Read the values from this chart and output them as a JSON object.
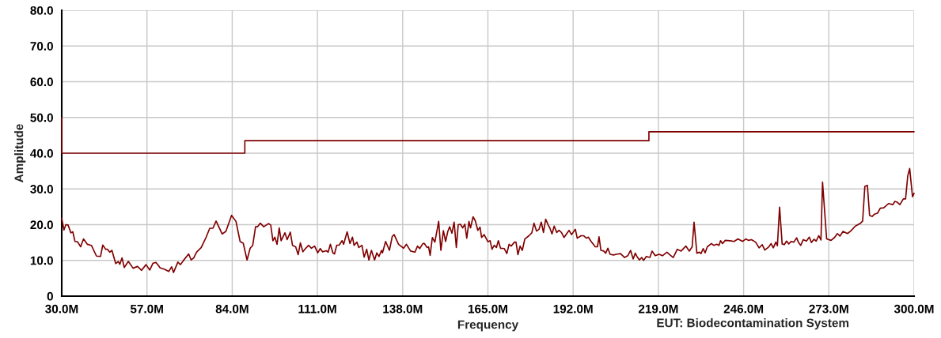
{
  "chart_data": {
    "type": "line",
    "xlabel": "Frequency",
    "ylabel": "Amplitude",
    "annotations": [
      "EUT: Biodecontamination System"
    ],
    "xlim": [
      30,
      300
    ],
    "ylim": [
      0,
      80
    ],
    "xticks": [
      {
        "value": 30,
        "label": "30.0M"
      },
      {
        "value": 57,
        "label": "57.0M"
      },
      {
        "value": 84,
        "label": "84.0M"
      },
      {
        "value": 111,
        "label": "111.0M"
      },
      {
        "value": 138,
        "label": "138.0M"
      },
      {
        "value": 165,
        "label": "165.0M"
      },
      {
        "value": 192,
        "label": "192.0M"
      },
      {
        "value": 219,
        "label": "219.0M"
      },
      {
        "value": 246,
        "label": "246.0M"
      },
      {
        "value": 273,
        "label": "273.0M"
      },
      {
        "value": 300,
        "label": "300.0M"
      }
    ],
    "yticks": [
      {
        "value": 0,
        "label": "0"
      },
      {
        "value": 10,
        "label": "10.0"
      },
      {
        "value": 20,
        "label": "20.0"
      },
      {
        "value": 30,
        "label": "30.0"
      },
      {
        "value": 40,
        "label": "40.0"
      },
      {
        "value": 50,
        "label": "50.0"
      },
      {
        "value": 60,
        "label": "60.0"
      },
      {
        "value": 70,
        "label": "70.0"
      },
      {
        "value": 80,
        "label": "80.0"
      }
    ],
    "grid": true,
    "legend": false,
    "series": [
      {
        "color": "#800000",
        "x": [
          30,
          30,
          88,
          88,
          216,
          216,
          300
        ],
        "values": [
          50,
          40,
          40,
          43.5,
          43.5,
          46,
          46
        ]
      },
      {
        "color": "#800000",
        "x": [
          30,
          30.7,
          31.3,
          32,
          32.9,
          33.5,
          34.2,
          35,
          36,
          36.9,
          38.1,
          39.4,
          41,
          42.3,
          43,
          43.9,
          44.5,
          45.2,
          45.9,
          47.1,
          47.9,
          48.4,
          49.1,
          49.8,
          51.1,
          52.6,
          54,
          55.3,
          56.7,
          57.9,
          58.9,
          59.9,
          61.2,
          62.6,
          63.9,
          64.8,
          65.4,
          66.8,
          67.6,
          68.5,
          70.2,
          71,
          71.8,
          72.7,
          74.2,
          75.7,
          76.9,
          77.9,
          78.9,
          80.8,
          82,
          83.8,
          85.2,
          86.5,
          87.5,
          88.7,
          89.7,
          90.5,
          91.4,
          92,
          92.9,
          94,
          95.5,
          96.2,
          96.9,
          97.5,
          98.2,
          98.9,
          99.5,
          100.7,
          101.4,
          102.4,
          103.1,
          104.1,
          104.9,
          105.6,
          106.4,
          107.2,
          108.2,
          109.1,
          110.1,
          111.1,
          111.9,
          112.6,
          113.8,
          114.4,
          115.1,
          115.9,
          116.4,
          117.1,
          117.9,
          118.8,
          119.3,
          120.4,
          121.3,
          122.1,
          122.6,
          123.5,
          124.1,
          125.1,
          125.8,
          126.6,
          127.3,
          128.1,
          129.1,
          129.8,
          130.5,
          131.3,
          131.6,
          132.6,
          133.8,
          134.7,
          135.3,
          136.7,
          138.3,
          139.2,
          140.5,
          141.9,
          142.7,
          143.4,
          144.4,
          144.9,
          145.7,
          146.2,
          146.7,
          147.4,
          148.2,
          149.4,
          150.1,
          150.9,
          151.6,
          152.3,
          152.9,
          153.6,
          154.3,
          155,
          155.6,
          156.3,
          157,
          157.7,
          158.3,
          159,
          159.5,
          160.3,
          161,
          161.8,
          162.5,
          163,
          163.8,
          165,
          165.7,
          166.3,
          167,
          167.7,
          168.3,
          169,
          170.2,
          171,
          171.7,
          172.4,
          173.4,
          173.9,
          174.5,
          175.2,
          175.9,
          176.7,
          178,
          178.9,
          179.6,
          180.4,
          181.2,
          181.9,
          182.6,
          183.3,
          184.1,
          184.6,
          185.3,
          186,
          186.8,
          187.5,
          188.3,
          189.1,
          190.7,
          191.5,
          192.7,
          193.3,
          194.5,
          195.3,
          196.2,
          196.8,
          197.7,
          199,
          199.7,
          200.2,
          200.8,
          201.7,
          202.3,
          203,
          203.7,
          204.8,
          205.7,
          207,
          208.3,
          209.3,
          210.2,
          211,
          211.7,
          212.2,
          213,
          213.7,
          214.3,
          215.2,
          216.3,
          217,
          218,
          219.2,
          220.3,
          221.7,
          222.7,
          223.7,
          225,
          226.2,
          227.7,
          228.8,
          229.7,
          230.3,
          231.2,
          232,
          232.5,
          233.2,
          233.8,
          234.5,
          235.8,
          236.5,
          237.5,
          238.2,
          238.7,
          239.3,
          240.2,
          241.7,
          243,
          244.2,
          245.7,
          246.7,
          247.5,
          248.5,
          249.8,
          250.9,
          251.9,
          252.7,
          253.9,
          254.7,
          255.4,
          256.2,
          256.7,
          257.4,
          258.2,
          258.9,
          259.6,
          260.3,
          261.1,
          261.9,
          262.8,
          263.4,
          264.1,
          264.9,
          265.9,
          266.8,
          267.5,
          268.3,
          269,
          269.8,
          270.5,
          271,
          272.3,
          273.7,
          274.8,
          275.7,
          276.5,
          277.5,
          278.9,
          279.9,
          281.4,
          282.9,
          283.7,
          284.4,
          285.2,
          285.9,
          286.7,
          287.4,
          288.4,
          289.3,
          290.4,
          291.9,
          293.3,
          293.9,
          294.6,
          295.5,
          296.6,
          297.3,
          298,
          298.6,
          299.5,
          300
        ],
        "values": [
          21.8,
          18.5,
          20,
          19.9,
          17.7,
          18,
          15.3,
          15.2,
          13.8,
          16,
          14.5,
          14.2,
          11.2,
          11.1,
          14.3,
          13.1,
          13.1,
          12.3,
          12.8,
          9.1,
          9.7,
          8.9,
          10.7,
          8,
          9.7,
          7.8,
          8.3,
          7.2,
          8.8,
          7.3,
          9.2,
          9.4,
          7.9,
          7.5,
          6.9,
          8.2,
          6.6,
          9.5,
          8.8,
          9.9,
          11.8,
          10.1,
          10.7,
          12.3,
          13.6,
          16.4,
          19,
          19,
          21,
          17.4,
          18.1,
          22.6,
          20.9,
          15.3,
          14.8,
          10.1,
          13.4,
          14.2,
          19.4,
          19.4,
          20.4,
          19.4,
          20.3,
          19.9,
          15.5,
          16.5,
          14.5,
          19.1,
          15.5,
          17.7,
          15.8,
          17.9,
          14.2,
          13.8,
          11.6,
          14.9,
          12.4,
          13.3,
          14.2,
          13.4,
          14,
          12.1,
          13.3,
          12.4,
          12.7,
          12.3,
          14.5,
          12.1,
          11.8,
          14.2,
          14.3,
          15.5,
          14.5,
          18,
          14.7,
          16.5,
          14.2,
          15.1,
          13.6,
          14.2,
          10.9,
          13.1,
          10.1,
          12.8,
          10.1,
          12.1,
          11.1,
          12.8,
          12.1,
          15.3,
          12.8,
          16.7,
          17.2,
          14.5,
          13.4,
          14.5,
          12.6,
          12.3,
          14,
          13.3,
          14.7,
          14.7,
          13.6,
          13.8,
          11.4,
          16.4,
          15.1,
          20.9,
          12.8,
          18.3,
          15.3,
          18.1,
          19.4,
          17.6,
          20.7,
          13.6,
          20,
          20.1,
          19.1,
          20.1,
          16.2,
          20.9,
          19.1,
          22.2,
          21.1,
          18.4,
          19.3,
          16.4,
          17.2,
          15.2,
          15.5,
          13.1,
          14.2,
          13.6,
          15.5,
          13.4,
          13.3,
          11.9,
          14.5,
          14,
          15.1,
          15.1,
          11.6,
          14,
          12.8,
          16,
          16.9,
          17.7,
          20.4,
          18.2,
          18.7,
          20.7,
          17.8,
          21.5,
          19.9,
          19.1,
          17.4,
          19.6,
          17.8,
          18.4,
          17.8,
          16.4,
          18.4,
          17.2,
          18.7,
          16.2,
          16.9,
          16.9,
          16.2,
          16.5,
          15.3,
          13.8,
          13.8,
          16.6,
          12.8,
          12.6,
          12,
          13.4,
          11.7,
          11.5,
          11.7,
          11.9,
          10.8,
          11.3,
          12.8,
          10.4,
          12,
          11.1,
          10.1,
          10.8,
          10,
          11.1,
          10.8,
          12.6,
          11.3,
          11.7,
          11.3,
          12.3,
          11.5,
          10.8,
          13.1,
          12.6,
          14,
          12.6,
          13.8,
          20.7,
          12,
          12.3,
          11.9,
          13.3,
          12.1,
          13.8,
          14.7,
          14.2,
          14.5,
          14.2,
          15.5,
          14.7,
          15.6,
          15.5,
          15.3,
          16,
          15.3,
          16,
          15.6,
          15.8,
          15.1,
          13.5,
          14.4,
          12.9,
          13.7,
          14.7,
          13.5,
          15.1,
          14.1,
          24.9,
          14.6,
          14.4,
          15.4,
          14.6,
          15.3,
          15.1,
          16.3,
          15,
          14.2,
          15.8,
          15.4,
          16.5,
          15,
          15.9,
          15.4,
          16.9,
          15.7,
          31.9,
          16,
          15.6,
          16.4,
          17.5,
          16.8,
          18.1,
          17.5,
          18.2,
          19.6,
          20.3,
          21,
          30.7,
          31,
          22.6,
          22.3,
          22.9,
          23.2,
          24.6,
          24.7,
          25.9,
          25.6,
          26.5,
          26.3,
          25.6,
          27.2,
          27.2,
          33.7,
          35.7,
          27.8,
          28.8
        ]
      }
    ]
  }
}
